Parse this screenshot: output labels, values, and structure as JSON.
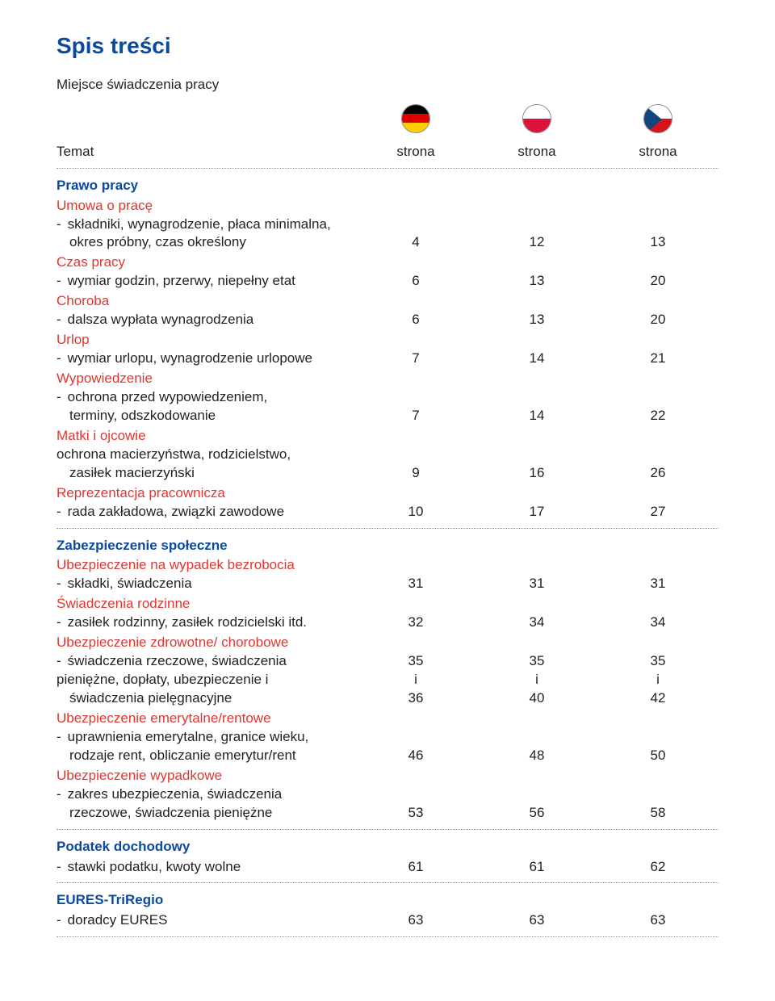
{
  "colors": {
    "title": "#0a4a9e",
    "section_heading": "#0a4a9e",
    "category": "#e2362f",
    "body_text": "#231f20",
    "dotted_rule": "#7a9ac1",
    "de_black": "#000000",
    "de_red": "#dd0000",
    "de_gold": "#ffce00",
    "pl_white": "#ffffff",
    "pl_red": "#dc143c",
    "cz_white": "#ffffff",
    "cz_red": "#d7141a",
    "cz_blue": "#11457e"
  },
  "title": "Spis treści",
  "subtitle": "Miejsce świadczenia pracy",
  "header": {
    "topic": "Temat",
    "col1": "strona",
    "col2": "strona",
    "col3": "strona"
  },
  "sections": [
    {
      "heading": "Prawo pracy",
      "groups": [
        {
          "category": "Umowa o pracę",
          "rows": [
            {
              "lines": [
                {
                  "text": "składniki, wynagrodzenie, płaca minimalna,",
                  "style": "indent-dash"
                },
                {
                  "text": "okres próbny, czas określony",
                  "style": "indent-plain",
                  "values": [
                    "4",
                    "12",
                    "13"
                  ]
                }
              ]
            }
          ]
        },
        {
          "category": "Czas pracy",
          "rows": [
            {
              "lines": [
                {
                  "text": "wymiar godzin, przerwy, niepełny etat",
                  "style": "indent-dash",
                  "values": [
                    "6",
                    "13",
                    "20"
                  ]
                }
              ]
            }
          ]
        },
        {
          "category": "Choroba",
          "rows": [
            {
              "lines": [
                {
                  "text": "dalsza wypłata wynagrodzenia",
                  "style": "indent-dash",
                  "values": [
                    "6",
                    "13",
                    "20"
                  ]
                }
              ]
            }
          ]
        },
        {
          "category": "Urlop",
          "rows": [
            {
              "lines": [
                {
                  "text": "wymiar urlopu, wynagrodzenie urlopowe",
                  "style": "indent-dash",
                  "values": [
                    "7",
                    "14",
                    "21"
                  ]
                }
              ]
            }
          ]
        },
        {
          "category": "Wypowiedzenie",
          "rows": [
            {
              "lines": [
                {
                  "text": "ochrona przed wypowiedzeniem,",
                  "style": "indent-dash"
                },
                {
                  "text": "terminy, odszkodowanie",
                  "style": "indent-plain",
                  "values": [
                    "7",
                    "14",
                    "22"
                  ]
                }
              ]
            }
          ]
        },
        {
          "category": "Matki i ojcowie",
          "rows": [
            {
              "lines": [
                {
                  "text": "ochrona macierzyństwa, rodzicielstwo,",
                  "style": ""
                },
                {
                  "text": "zasiłek macierzyński",
                  "style": "indent-plain",
                  "values": [
                    "9",
                    "16",
                    "26"
                  ]
                }
              ]
            }
          ]
        },
        {
          "category": "Reprezentacja pracownicza",
          "rows": [
            {
              "lines": [
                {
                  "text": "rada zakładowa, związki zawodowe",
                  "style": "indent-dash",
                  "values": [
                    "10",
                    "17",
                    "27"
                  ]
                }
              ]
            }
          ]
        }
      ]
    },
    {
      "heading": "Zabezpieczenie społeczne",
      "groups": [
        {
          "category": "Ubezpieczenie na wypadek bezrobocia",
          "rows": [
            {
              "lines": [
                {
                  "text": "składki, świadczenia",
                  "style": "indent-dash",
                  "values": [
                    "31",
                    "31",
                    "31"
                  ]
                }
              ]
            }
          ]
        },
        {
          "category": "Świadczenia rodzinne",
          "rows": [
            {
              "lines": [
                {
                  "text": "zasiłek rodzinny, zasiłek rodzicielski itd.",
                  "style": "indent-dash",
                  "values": [
                    "32",
                    "34",
                    "34"
                  ]
                }
              ]
            }
          ]
        },
        {
          "category": "Ubezpieczenie zdrowotne/ chorobowe",
          "rows": [
            {
              "lines": [
                {
                  "text": "świadczenia rzeczowe, świadczenia",
                  "style": "indent-dash",
                  "values": [
                    "35",
                    "35",
                    "35"
                  ]
                }
              ]
            },
            {
              "lines": [
                {
                  "text": "pieniężne, dopłaty, ubezpieczenie i",
                  "style": "",
                  "values": [
                    "i",
                    "i",
                    "i"
                  ]
                }
              ]
            },
            {
              "lines": [
                {
                  "text": "świadczenia pielęgnacyjne",
                  "style": "indent-plain",
                  "values": [
                    "36",
                    "40",
                    "42"
                  ]
                }
              ]
            }
          ]
        },
        {
          "category": "Ubezpieczenie emerytalne/rentowe",
          "rows": [
            {
              "lines": [
                {
                  "text": "uprawnienia emerytalne, granice wieku,",
                  "style": "indent-dash"
                },
                {
                  "text": "rodzaje rent, obliczanie emerytur/rent",
                  "style": "indent-plain",
                  "values": [
                    "46",
                    "48",
                    "50"
                  ]
                }
              ]
            }
          ]
        },
        {
          "category": "Ubezpieczenie wypadkowe",
          "rows": [
            {
              "lines": [
                {
                  "text": "zakres ubezpieczenia, świadczenia",
                  "style": "indent-dash"
                },
                {
                  "text": "rzeczowe, świadczenia pieniężne",
                  "style": "indent-plain",
                  "values": [
                    "53",
                    "56",
                    "58"
                  ]
                }
              ]
            }
          ]
        }
      ]
    },
    {
      "heading": "Podatek dochodowy",
      "groups": [
        {
          "category": "",
          "rows": [
            {
              "lines": [
                {
                  "text": "stawki podatku, kwoty wolne",
                  "style": "indent-dash",
                  "values": [
                    "61",
                    "61",
                    "62"
                  ]
                }
              ]
            }
          ]
        }
      ]
    },
    {
      "heading": "EURES-TriRegio",
      "groups": [
        {
          "category": "",
          "rows": [
            {
              "lines": [
                {
                  "text": "doradcy EURES",
                  "style": "indent-dash",
                  "values": [
                    "63",
                    "63",
                    "63"
                  ]
                }
              ]
            }
          ]
        }
      ]
    }
  ]
}
